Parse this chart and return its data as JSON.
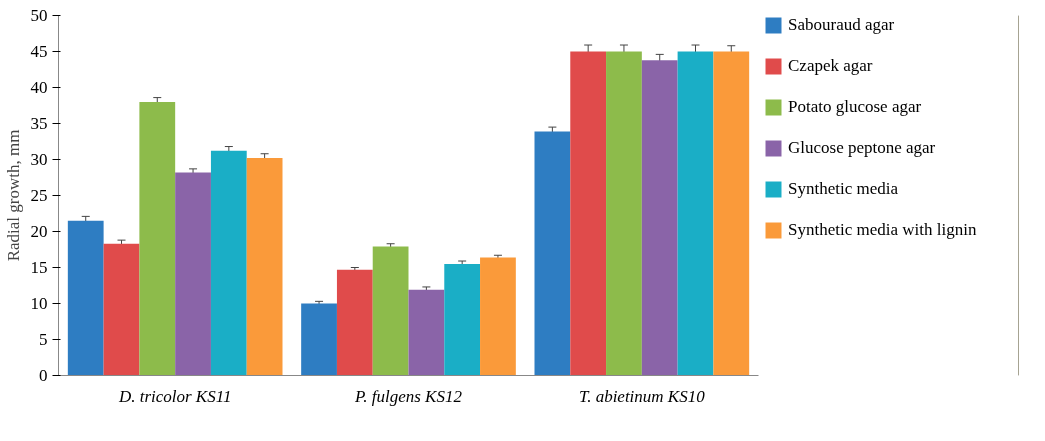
{
  "chart_data": {
    "type": "bar",
    "ylabel": "Radial growth, mm",
    "categories": [
      "D. tricolor KS11",
      "P. fulgens KS12",
      "T. abietinum KS10"
    ],
    "series": [
      {
        "name": "Sabouraud agar",
        "color": "#2e7dc2",
        "values": [
          21.5,
          10,
          33.9
        ],
        "errors": [
          0.6,
          0.3,
          0.6
        ]
      },
      {
        "name": "Czapek agar",
        "color": "#e04b4b",
        "values": [
          18.3,
          14.7,
          45
        ],
        "errors": [
          0.5,
          0.3,
          0.9
        ]
      },
      {
        "name": "Potato glucose agar",
        "color": "#8dbb4b",
        "values": [
          38,
          17.9,
          45
        ],
        "errors": [
          0.6,
          0.4,
          0.9
        ]
      },
      {
        "name": "Glucose peptone agar",
        "color": "#8a64a8",
        "values": [
          28.2,
          11.9,
          43.8
        ],
        "errors": [
          0.5,
          0.4,
          0.8
        ]
      },
      {
        "name": "Synthetic media",
        "color": "#1aaec6",
        "values": [
          31.2,
          15.5,
          45
        ],
        "errors": [
          0.6,
          0.4,
          0.9
        ]
      },
      {
        "name": "Synthetic media with lignin",
        "color": "#fa9a3a",
        "values": [
          30.2,
          16.4,
          45
        ],
        "errors": [
          0.6,
          0.3,
          0.8
        ]
      }
    ],
    "ylim": [
      0,
      50
    ],
    "yticks": [
      0,
      5,
      10,
      15,
      20,
      25,
      30,
      35,
      40,
      45,
      50
    ],
    "grid": false,
    "legend": "right"
  }
}
